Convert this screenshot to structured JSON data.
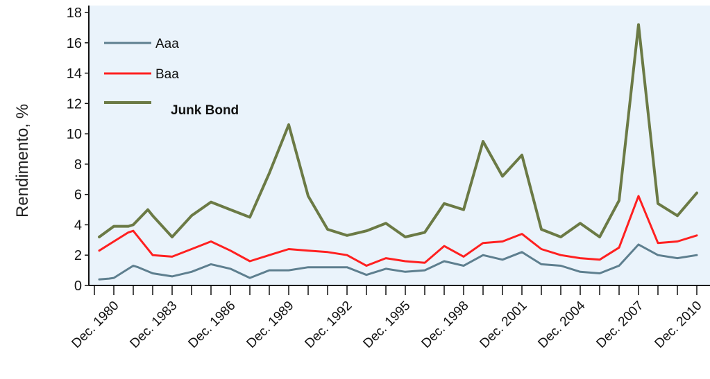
{
  "chart_data": {
    "type": "line",
    "title": "",
    "xlabel": "",
    "ylabel": "Rendimento, %",
    "ylim": [
      0,
      18
    ],
    "yticks": [
      0,
      2,
      4,
      6,
      8,
      10,
      12,
      14,
      16,
      18
    ],
    "x_tick_labels": [
      "Dec. 1980",
      "Dec. 1983",
      "Dec. 1986",
      "Dec. 1989",
      "Dec. 1992",
      "Dec. 1995",
      "Dec. 1998",
      "Dec. 2001",
      "Dec. 2004",
      "Dec. 2007",
      "Dec. 2010"
    ],
    "x_start": 1980,
    "x_end": 2011.5,
    "grid": false,
    "legend_position": "top-left",
    "colors": {
      "plot_background": "#eaf3fb",
      "aaa": "#5e7f8f",
      "baa": "#ff2020",
      "junk": "#6b7a45"
    },
    "series": [
      {
        "name": "Aaa",
        "color": "#5e7f8f",
        "x": [
          1980.25,
          1980.75,
          1981,
          1981.75,
          1982,
          1982.25,
          1983,
          1984,
          1985,
          1986,
          1987,
          1988,
          1989,
          1990,
          1991,
          1992,
          1993,
          1994,
          1995,
          1996,
          1997,
          1998,
          1999,
          2000,
          2001,
          2002,
          2003,
          2004,
          2005,
          2006,
          2007,
          2008,
          2009,
          2010,
          2011
        ],
        "values": [
          0.4,
          0.45,
          0.5,
          1.1,
          1.3,
          1.2,
          0.8,
          0.6,
          0.9,
          1.4,
          1.1,
          0.5,
          1.0,
          1.0,
          1.2,
          1.2,
          1.2,
          0.7,
          1.1,
          0.9,
          1.0,
          1.6,
          1.3,
          2.0,
          1.7,
          2.2,
          1.4,
          1.3,
          0.9,
          0.8,
          1.3,
          2.7,
          2.0,
          1.8,
          2.0
        ]
      },
      {
        "name": "Baa",
        "color": "#ff2020",
        "x": [
          1980.25,
          1981,
          1981.75,
          1982,
          1983,
          1984,
          1985,
          1986,
          1987,
          1988,
          1989,
          1990,
          1991,
          1992,
          1993,
          1994,
          1995,
          1996,
          1997,
          1998,
          1999,
          2000,
          2001,
          2002,
          2003,
          2004,
          2005,
          2006,
          2007,
          2008,
          2009,
          2010,
          2011
        ],
        "values": [
          2.3,
          2.9,
          3.5,
          3.6,
          2.0,
          1.9,
          2.4,
          2.9,
          2.3,
          1.6,
          2.0,
          2.4,
          2.3,
          2.2,
          2.0,
          1.3,
          1.8,
          1.6,
          1.5,
          2.6,
          1.9,
          2.8,
          2.9,
          3.4,
          2.4,
          2.0,
          1.8,
          1.7,
          2.5,
          5.9,
          2.8,
          2.9,
          3.3
        ]
      },
      {
        "name": "Junk Bond",
        "color": "#6b7a45",
        "x": [
          1980.25,
          1981,
          1981.75,
          1982,
          1982.75,
          1983,
          1984,
          1985,
          1986,
          1987,
          1988,
          1989,
          1990,
          1991,
          1992,
          1993,
          1994,
          1995,
          1996,
          1997,
          1998,
          1999,
          2000,
          2001,
          2002,
          2003,
          2004,
          2005,
          2006,
          2007,
          2008,
          2009,
          2010,
          2011
        ],
        "values": [
          3.2,
          3.9,
          3.9,
          4.0,
          5.0,
          4.6,
          3.2,
          4.6,
          5.5,
          5.0,
          4.5,
          7.4,
          10.6,
          5.9,
          3.7,
          3.3,
          3.6,
          4.1,
          3.2,
          3.5,
          5.4,
          5.0,
          9.5,
          7.2,
          8.6,
          3.7,
          3.2,
          4.1,
          3.2,
          5.6,
          17.2,
          5.4,
          4.6,
          6.1
        ]
      }
    ]
  }
}
